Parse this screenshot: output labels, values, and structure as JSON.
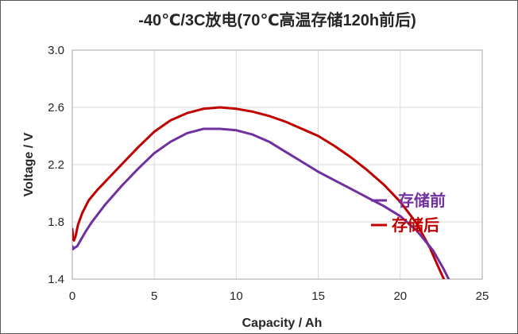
{
  "chart_data": {
    "type": "line",
    "title": "-40℃/3C放电(70℃高温存储120h前后)",
    "xlabel": "Capacity / Ah",
    "ylabel": "Voltage / V",
    "xlim": [
      0,
      25
    ],
    "ylim": [
      1.4,
      3.0
    ],
    "xticks": [
      0,
      5,
      10,
      15,
      20,
      25
    ],
    "xtick_labels": [
      "0",
      "5",
      "10",
      "15",
      "20",
      "25"
    ],
    "yticks": [
      1.4,
      1.8,
      2.2,
      2.6,
      3.0
    ],
    "ytick_labels": [
      "1.4",
      "1.8",
      "2.2",
      "2.6",
      "3.0"
    ],
    "grid": true,
    "legend_position": "right-middle",
    "series": [
      {
        "name": "存储前",
        "color": "#7030A0",
        "x": [
          0.0,
          0.05,
          0.15,
          0.3,
          0.5,
          0.8,
          1.2,
          2,
          3,
          4,
          5,
          6,
          7,
          8,
          9,
          10,
          11,
          12,
          13,
          14,
          15,
          16,
          17,
          18,
          19,
          20,
          21,
          22,
          22.6,
          23.0
        ],
        "y": [
          1.63,
          1.61,
          1.62,
          1.63,
          1.67,
          1.73,
          1.8,
          1.92,
          2.05,
          2.17,
          2.28,
          2.36,
          2.42,
          2.45,
          2.45,
          2.44,
          2.41,
          2.36,
          2.29,
          2.22,
          2.15,
          2.09,
          2.03,
          1.97,
          1.91,
          1.84,
          1.74,
          1.6,
          1.48,
          1.39
        ]
      },
      {
        "name": "存储后",
        "color": "#C00000",
        "x": [
          0.0,
          0.05,
          0.1,
          0.2,
          0.35,
          0.6,
          1,
          1.5,
          2,
          3,
          4,
          5,
          6,
          7,
          8,
          9,
          10,
          11,
          12,
          13,
          14,
          15,
          16,
          17,
          18,
          19,
          20,
          21,
          21.8,
          22.3,
          22.7
        ],
        "y": [
          1.75,
          1.68,
          1.67,
          1.7,
          1.78,
          1.86,
          1.95,
          2.02,
          2.08,
          2.2,
          2.32,
          2.43,
          2.51,
          2.56,
          2.59,
          2.6,
          2.59,
          2.57,
          2.54,
          2.5,
          2.45,
          2.4,
          2.33,
          2.25,
          2.16,
          2.06,
          1.94,
          1.79,
          1.62,
          1.49,
          1.39
        ]
      }
    ]
  }
}
